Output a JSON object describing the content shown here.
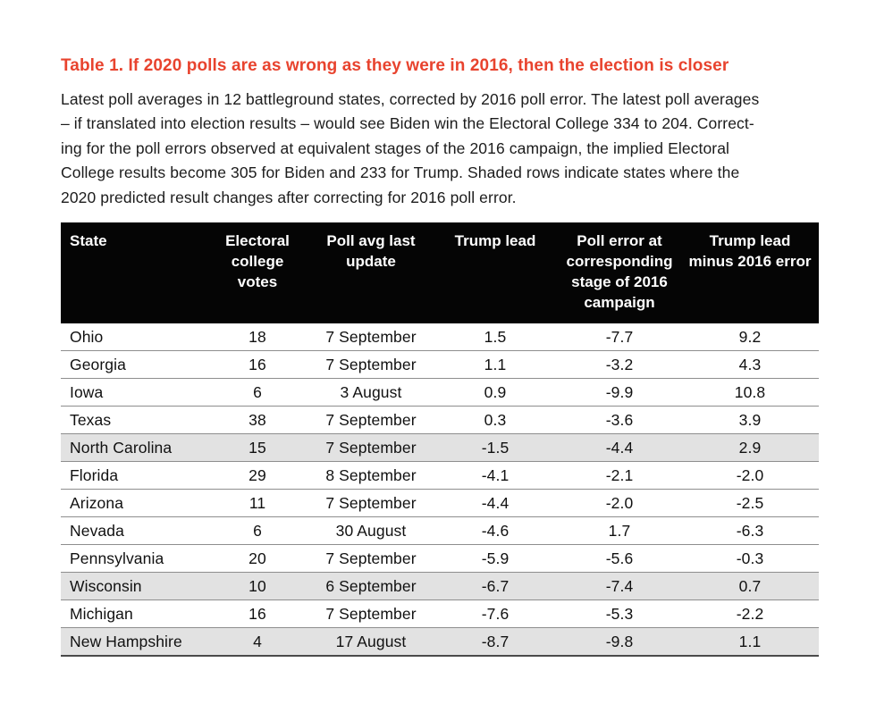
{
  "page": {
    "title": "Table 1. If 2020 polls are as wrong as they were in 2016, then the election is closer",
    "title_color": "#e8432e",
    "intro_lines": [
      "Latest poll averages in 12 battleground states, corrected by 2016 poll error. The latest poll averages",
      "– if translated into election results – would see Biden win the Electoral College 334 to 204. Correct-",
      "ing for the poll errors observed at equivalent stages of the 2016 campaign, the implied Electoral",
      "College results become 305 for Biden and 233 for Trump. Shaded rows indicate states where the",
      "2020 predicted result changes after correcting for 2016 poll error."
    ]
  },
  "table": {
    "columns": [
      "State",
      "Electoral college votes",
      "Poll avg last update",
      "Trump lead",
      "Poll error at corresponding stage of 2016 campaign",
      "Trump lead minus 2016 error"
    ],
    "rows": [
      {
        "shaded": false,
        "cells": [
          "Ohio",
          "18",
          "7 September",
          "1.5",
          "-7.7",
          "9.2"
        ]
      },
      {
        "shaded": false,
        "cells": [
          "Georgia",
          "16",
          "7 September",
          "1.1",
          "-3.2",
          "4.3"
        ]
      },
      {
        "shaded": false,
        "cells": [
          "Iowa",
          "6",
          "3 August",
          "0.9",
          "-9.9",
          "10.8"
        ]
      },
      {
        "shaded": false,
        "cells": [
          "Texas",
          "38",
          "7 September",
          "0.3",
          "-3.6",
          "3.9"
        ]
      },
      {
        "shaded": true,
        "cells": [
          "North Carolina",
          "15",
          "7 September",
          "-1.5",
          "-4.4",
          "2.9"
        ]
      },
      {
        "shaded": false,
        "cells": [
          "Florida",
          "29",
          "8 September",
          "-4.1",
          "-2.1",
          "-2.0"
        ]
      },
      {
        "shaded": false,
        "cells": [
          "Arizona",
          "11",
          "7 September",
          "-4.4",
          "-2.0",
          "-2.5"
        ]
      },
      {
        "shaded": false,
        "cells": [
          "Nevada",
          "6",
          "30 August",
          "-4.6",
          "1.7",
          "-6.3"
        ]
      },
      {
        "shaded": false,
        "cells": [
          "Pennsylvania",
          "20",
          "7 September",
          "-5.9",
          "-5.6",
          "-0.3"
        ]
      },
      {
        "shaded": true,
        "cells": [
          "Wisconsin",
          "10",
          "6 September",
          "-6.7",
          "-7.4",
          "0.7"
        ]
      },
      {
        "shaded": false,
        "cells": [
          "Michigan",
          "16",
          "7 September",
          "-7.6",
          "-5.3",
          "-2.2"
        ]
      },
      {
        "shaded": true,
        "cells": [
          "New Hampshire",
          "4",
          "17 August",
          "-8.7",
          "-9.8",
          "1.1"
        ]
      }
    ],
    "colors": {
      "header_bg": "#050505",
      "header_text": "#ffffff",
      "shaded_row": "#e2e2e2",
      "separator": "#8e8e8e"
    }
  }
}
